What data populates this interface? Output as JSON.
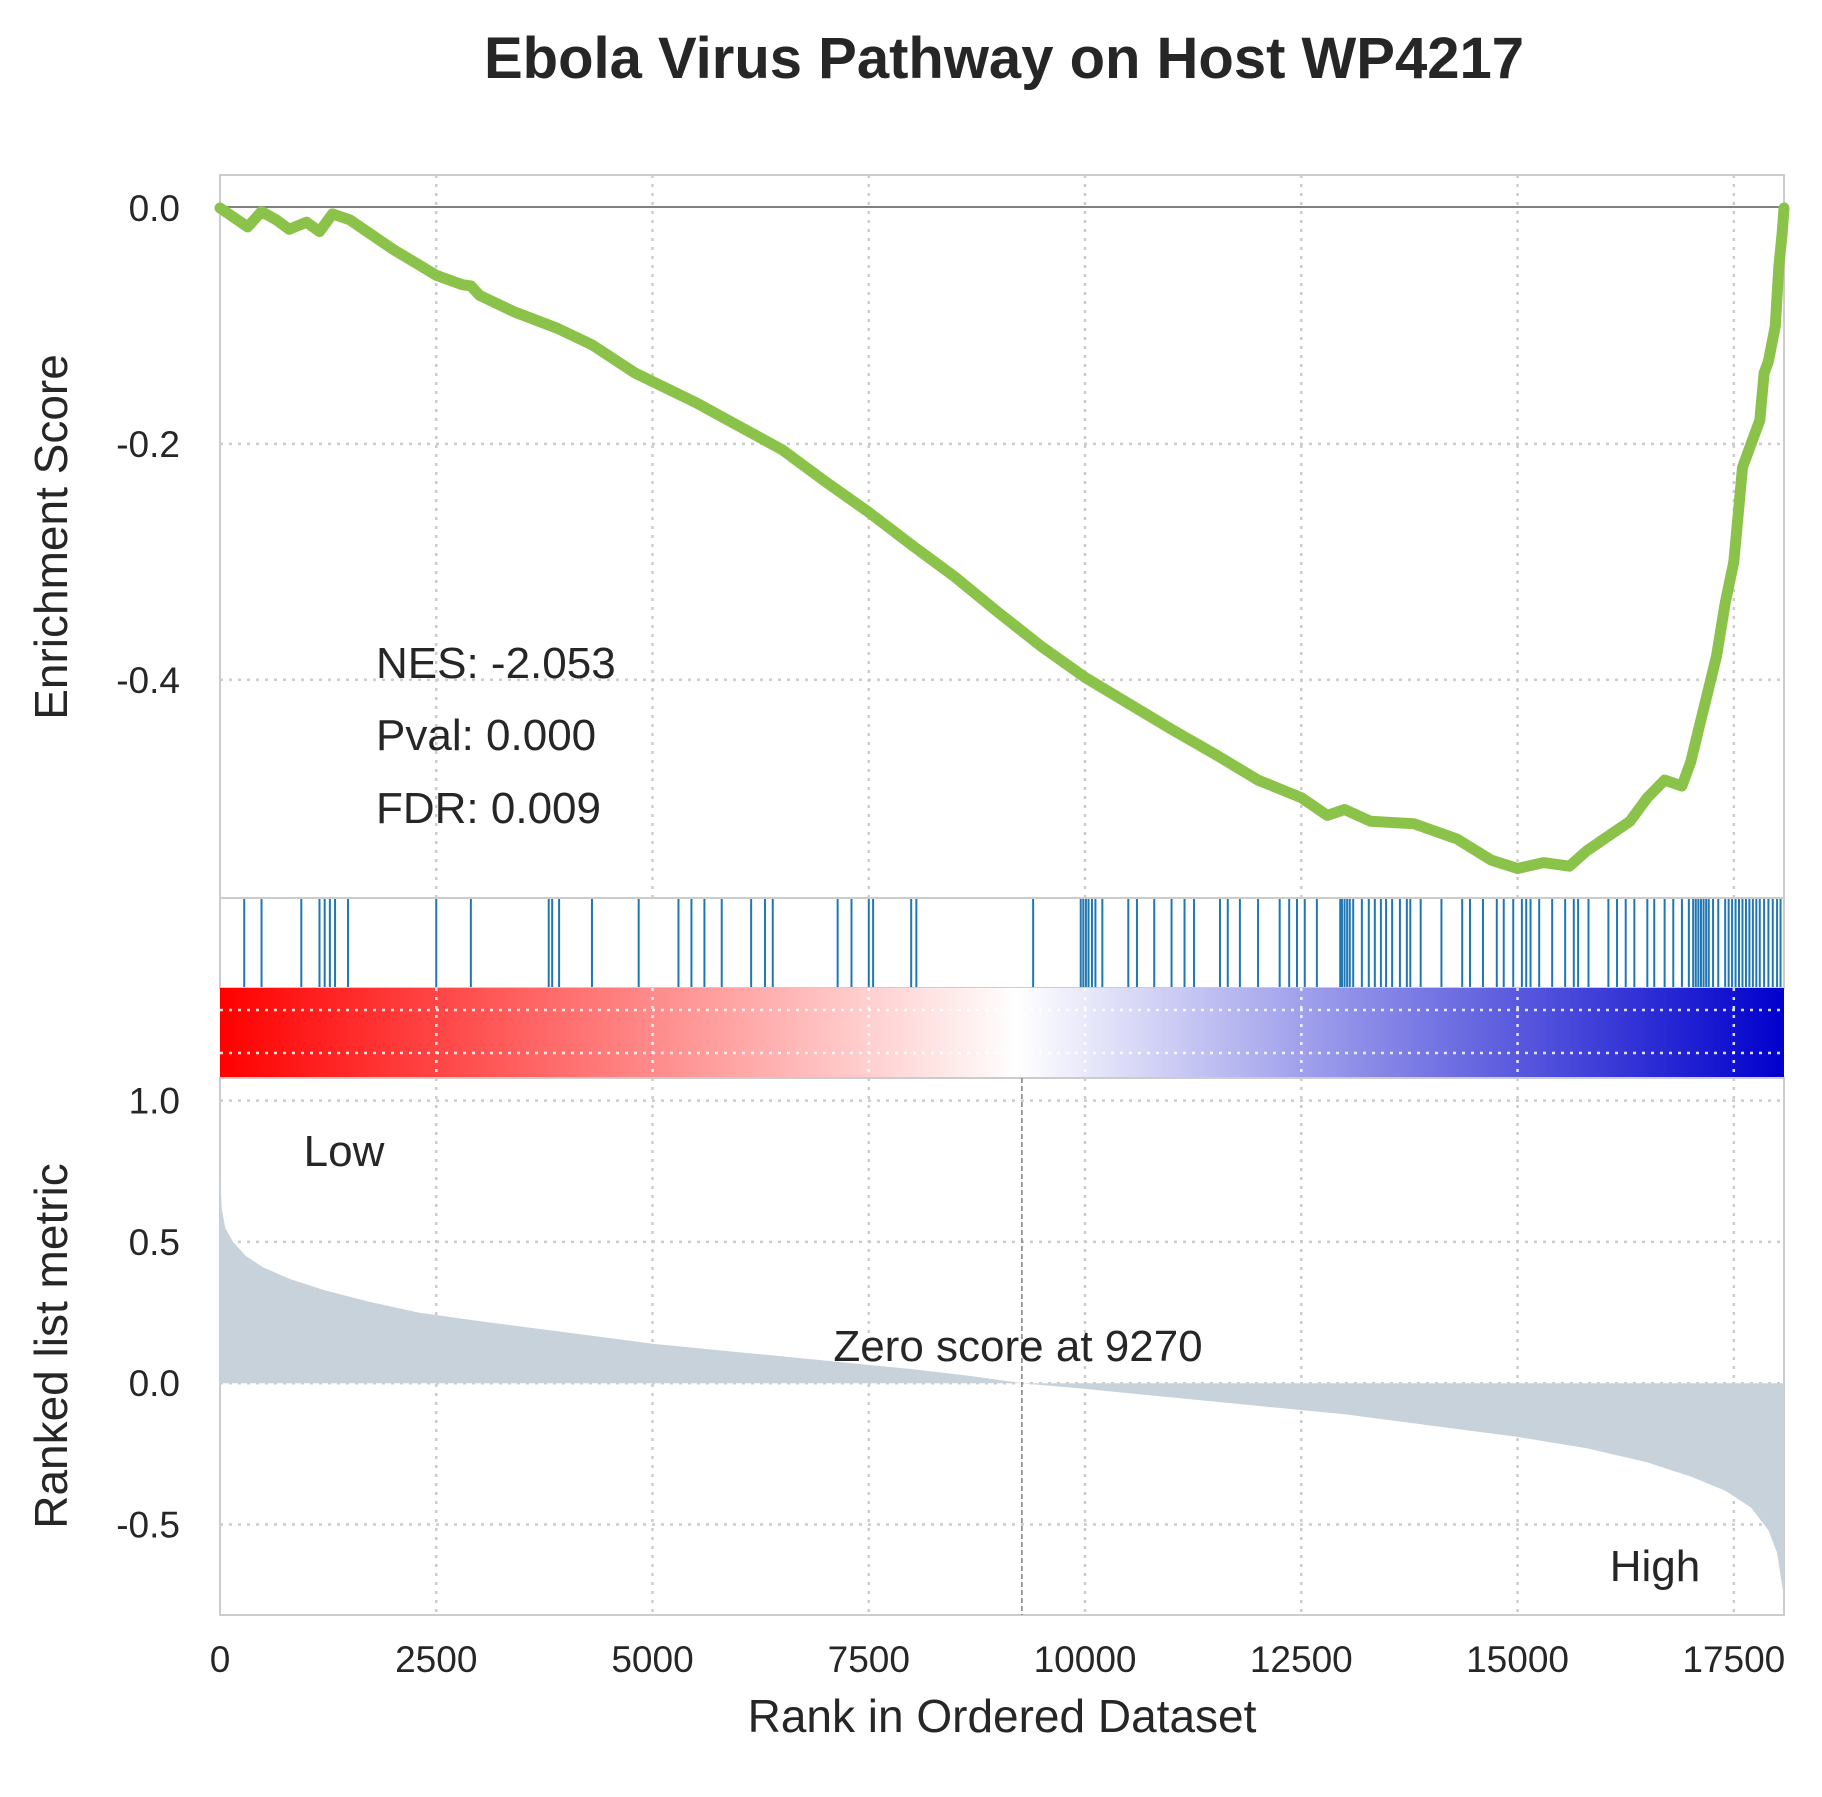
{
  "chart_data": {
    "type": "line",
    "title": "Ebola Virus Pathway on Host WP4217",
    "xlabel": "Rank in Ordered Dataset",
    "xlim": [
      0,
      18080
    ],
    "x_ticks": [
      0,
      2500,
      5000,
      7500,
      10000,
      12500,
      15000,
      17500
    ],
    "x_tick_labels": [
      "0",
      "2500",
      "5000",
      "7500",
      "10000",
      "12500",
      "15000",
      "17500"
    ],
    "grid": true,
    "colors": {
      "es_line": "#8bc34a",
      "hits": "#1f77b4",
      "metric_fill": "#c8d2db",
      "low_text": "#ff0000",
      "high_text": "#0000ff",
      "gradient": [
        "#ff0000",
        "#ffffff",
        "#0000cc"
      ]
    },
    "enrichment_panel": {
      "ylabel": "Enrichment Score",
      "ylim": [
        -0.585,
        0.028
      ],
      "y_ticks": [
        0.0,
        -0.2,
        -0.4
      ],
      "y_tick_labels": [
        "0.0",
        "-0.2",
        "-0.4"
      ],
      "stats": {
        "nes": "NES: -2.053",
        "pval": "Pval: 0.000",
        "fdr": "FDR: 0.009"
      },
      "running_es": [
        [
          0,
          0.0
        ],
        [
          200,
          -0.01
        ],
        [
          320,
          -0.016
        ],
        [
          480,
          -0.003
        ],
        [
          650,
          -0.01
        ],
        [
          800,
          -0.018
        ],
        [
          1000,
          -0.012
        ],
        [
          1150,
          -0.02
        ],
        [
          1300,
          -0.005
        ],
        [
          1500,
          -0.01
        ],
        [
          2000,
          -0.035
        ],
        [
          2500,
          -0.057
        ],
        [
          2800,
          -0.065
        ],
        [
          2900,
          -0.066
        ],
        [
          3000,
          -0.074
        ],
        [
          3400,
          -0.088
        ],
        [
          3900,
          -0.102
        ],
        [
          4300,
          -0.116
        ],
        [
          4800,
          -0.14
        ],
        [
          5500,
          -0.165
        ],
        [
          6000,
          -0.185
        ],
        [
          6500,
          -0.205
        ],
        [
          7000,
          -0.232
        ],
        [
          7500,
          -0.258
        ],
        [
          8000,
          -0.286
        ],
        [
          8500,
          -0.313
        ],
        [
          9000,
          -0.343
        ],
        [
          9500,
          -0.372
        ],
        [
          10000,
          -0.398
        ],
        [
          10500,
          -0.42
        ],
        [
          11000,
          -0.442
        ],
        [
          11500,
          -0.463
        ],
        [
          12000,
          -0.485
        ],
        [
          12500,
          -0.5
        ],
        [
          12800,
          -0.515
        ],
        [
          13000,
          -0.51
        ],
        [
          13300,
          -0.52
        ],
        [
          13800,
          -0.522
        ],
        [
          14300,
          -0.535
        ],
        [
          14700,
          -0.553
        ],
        [
          15000,
          -0.56
        ],
        [
          15300,
          -0.555
        ],
        [
          15600,
          -0.558
        ],
        [
          15800,
          -0.545
        ],
        [
          16100,
          -0.53
        ],
        [
          16300,
          -0.52
        ],
        [
          16500,
          -0.5
        ],
        [
          16700,
          -0.485
        ],
        [
          16900,
          -0.49
        ],
        [
          17000,
          -0.47
        ],
        [
          17100,
          -0.44
        ],
        [
          17200,
          -0.41
        ],
        [
          17300,
          -0.38
        ],
        [
          17400,
          -0.335
        ],
        [
          17500,
          -0.3
        ],
        [
          17600,
          -0.22
        ],
        [
          17700,
          -0.2
        ],
        [
          17800,
          -0.18
        ],
        [
          17850,
          -0.14
        ],
        [
          17900,
          -0.13
        ],
        [
          17980,
          -0.1
        ],
        [
          18020,
          -0.05
        ],
        [
          18060,
          -0.02
        ],
        [
          18080,
          0.0
        ]
      ]
    },
    "hits_panel": {
      "hit_ranks": [
        280,
        480,
        940,
        1150,
        1210,
        1270,
        1330,
        1480,
        2500,
        2900,
        3800,
        3840,
        3920,
        4300,
        4840,
        5300,
        5450,
        5600,
        5800,
        6140,
        6300,
        6390,
        7140,
        7300,
        7500,
        7550,
        7990,
        8050,
        9400,
        9950,
        9980,
        10010,
        10040,
        10080,
        10120,
        10200,
        10500,
        10600,
        10800,
        11000,
        11150,
        11260,
        11560,
        11650,
        11790,
        12000,
        12250,
        12360,
        12450,
        12540,
        12680,
        12950,
        12970,
        13000,
        13030,
        13060,
        13100,
        13200,
        13280,
        13350,
        13420,
        13480,
        13550,
        13640,
        13720,
        13760,
        13880,
        14120,
        14360,
        14450,
        14600,
        14760,
        14840,
        14950,
        15050,
        15100,
        15150,
        15250,
        15400,
        15550,
        15650,
        15700,
        15820,
        16050,
        16150,
        16250,
        16350,
        16500,
        16580,
        16700,
        16800,
        16900,
        16980,
        17030,
        17060,
        17090,
        17120,
        17150,
        17180,
        17210,
        17260,
        17320,
        17400,
        17440,
        17480,
        17520,
        17560,
        17600,
        17640,
        17680,
        17720,
        17760,
        17800,
        17850,
        17900,
        17950,
        18000,
        18040
      ]
    },
    "metric_panel": {
      "ylabel": "Ranked list metric",
      "ylim": [
        -0.82,
        1.08
      ],
      "y_ticks": [
        1.0,
        0.5,
        0.0,
        -0.5
      ],
      "y_tick_labels": [
        "1.0",
        "0.5",
        "0.0",
        "-0.5"
      ],
      "zero_cross": 9270,
      "zero_label": "Zero score at 9270",
      "low_label": "Low",
      "high_label": "High",
      "metric": [
        [
          0,
          0.76
        ],
        [
          20,
          0.62
        ],
        [
          60,
          0.55
        ],
        [
          150,
          0.5
        ],
        [
          300,
          0.45
        ],
        [
          500,
          0.41
        ],
        [
          800,
          0.37
        ],
        [
          1200,
          0.33
        ],
        [
          1700,
          0.29
        ],
        [
          2300,
          0.25
        ],
        [
          3000,
          0.22
        ],
        [
          4000,
          0.18
        ],
        [
          5000,
          0.14
        ],
        [
          6000,
          0.11
        ],
        [
          7000,
          0.08
        ],
        [
          8000,
          0.05
        ],
        [
          8700,
          0.025
        ],
        [
          9270,
          0.0
        ],
        [
          10000,
          -0.02
        ],
        [
          11000,
          -0.05
        ],
        [
          12000,
          -0.08
        ],
        [
          13000,
          -0.11
        ],
        [
          14000,
          -0.15
        ],
        [
          15000,
          -0.19
        ],
        [
          15800,
          -0.23
        ],
        [
          16500,
          -0.28
        ],
        [
          17000,
          -0.33
        ],
        [
          17400,
          -0.38
        ],
        [
          17700,
          -0.44
        ],
        [
          17900,
          -0.52
        ],
        [
          18000,
          -0.6
        ],
        [
          18080,
          -0.76
        ]
      ]
    }
  }
}
